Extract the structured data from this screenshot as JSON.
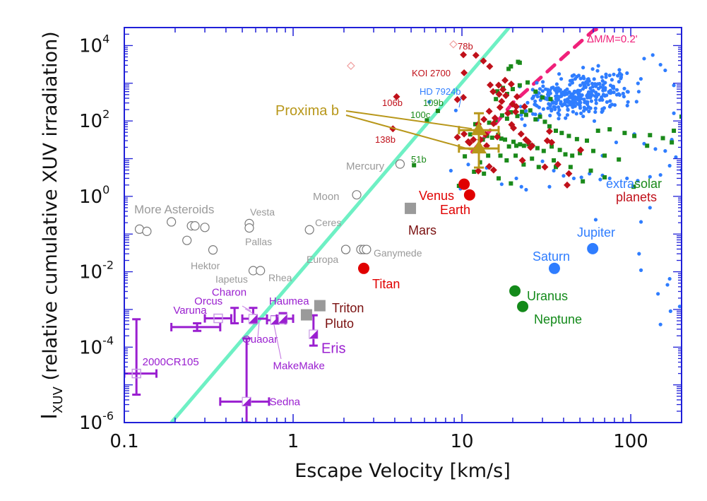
{
  "chart_data": {
    "type": "scatter",
    "title": "",
    "xlabel": "Escape Velocity [km/s]",
    "ylabel_main": "I",
    "ylabel_sub": "XUV",
    "ylabel_rest": " (relative cumulative XUV irradiation)",
    "xscale": "log",
    "yscale": "log",
    "xlim": [
      0.1,
      200
    ],
    "ylim": [
      1e-06,
      30000.0
    ],
    "grid": false,
    "x_ticks": [
      {
        "value": 0.1,
        "label": "0.1"
      },
      {
        "value": 1,
        "label": "1"
      },
      {
        "value": 10,
        "label": "10"
      },
      {
        "value": 100,
        "label": "100"
      }
    ],
    "y_ticks": [
      {
        "value": 1e-06,
        "base": "10",
        "exp": "-6"
      },
      {
        "value": 0.0001,
        "base": "10",
        "exp": "-4"
      },
      {
        "value": 0.01,
        "base": "10",
        "exp": "-2"
      },
      {
        "value": 1,
        "base": "10",
        "exp": "0"
      },
      {
        "value": 100,
        "base": "10",
        "exp": "2"
      },
      {
        "value": 10000,
        "base": "10",
        "exp": "4"
      }
    ],
    "colors": {
      "axis": "#2020d8",
      "cosmic_shoreline": "#6ef0c4",
      "mass_loss_line": "#f0207a",
      "solar_gray": "#9a9a9a",
      "rocky_red": "#e00000",
      "dark_red": "#7a1010",
      "giant_blue": "#2f7dff",
      "ice_green": "#138a1a",
      "dwarf_purple": "#9a1fd0",
      "proxima_gold": "#b8971a",
      "exo_red": "#c0101a",
      "exo_green": "#1a8a1a",
      "exo_blue": "#2f7dff",
      "exo_outline": "#f0a0a0"
    },
    "lines": [
      {
        "name": "cosmic-shoreline",
        "style": "solid",
        "points": [
          [
            0.19,
            1e-06
          ],
          [
            19,
            30000.0
          ]
        ]
      },
      {
        "name": "mass-loss-0.2",
        "style": "dashed",
        "label": "ΔM/M=0.2",
        "points": [
          [
            11.5,
            15
          ],
          [
            20,
            300
          ],
          [
            40,
            5000
          ],
          [
            60,
            25000
          ],
          [
            70,
            32000
          ]
        ]
      }
    ],
    "annotations": [
      {
        "text": "ΔM/M=0.2'",
        "x": 55,
        "y": 12000,
        "color": "#f0207a"
      },
      {
        "text": "More Asteroids",
        "x": 0.13,
        "y": 0.35,
        "color": "#9a9a9a"
      },
      {
        "text": "extra",
        "x": 88,
        "y": 1.2,
        "color": "#2f7dff",
        "part": 1
      },
      {
        "text": "solar",
        "x": 125,
        "y": 1.2,
        "color": "#1a8a1a",
        "part": 2
      },
      {
        "text": "planets",
        "x": 105,
        "y": 0.55,
        "color": "#c0101a"
      }
    ],
    "solar_system": [
      {
        "name": "Mercury",
        "x": 4.3,
        "y": 7.2,
        "marker": "circle-open",
        "color": "#9a9a9a",
        "label_side": "left"
      },
      {
        "name": "Moon",
        "x": 2.38,
        "y": 1.1,
        "marker": "circle-open",
        "color": "#9a9a9a",
        "label_side": "left"
      },
      {
        "name": "Vesta",
        "x": 0.55,
        "y": 0.19,
        "marker": "circle-open",
        "color": "#9a9a9a",
        "label_side": "top"
      },
      {
        "name": "Pallas",
        "x": 0.55,
        "y": 0.145,
        "marker": "circle-open",
        "color": "#9a9a9a",
        "label_side": "bottom"
      },
      {
        "name": "Ceres",
        "x": 1.25,
        "y": 0.13,
        "marker": "circle-open",
        "color": "#9a9a9a",
        "label_side": "right"
      },
      {
        "name": "Europa",
        "x": 2.05,
        "y": 0.039,
        "marker": "circle-open",
        "color": "#9a9a9a",
        "label_side": "left-below"
      },
      {
        "name": "Ganymede",
        "x": 2.72,
        "y": 0.039,
        "marker": "circle-open",
        "color": "#9a9a9a",
        "label_side": "right"
      },
      {
        "name": "Hektor",
        "x": 0.335,
        "y": 0.038,
        "marker": "circle-open",
        "color": "#9a9a9a",
        "label_side": "bottom"
      },
      {
        "name": "Iapetus",
        "x": 0.58,
        "y": 0.0107,
        "marker": "circle-open",
        "color": "#9a9a9a",
        "label_side": "left-below"
      },
      {
        "name": "Rhea",
        "x": 0.64,
        "y": 0.0107,
        "marker": "circle-open",
        "color": "#9a9a9a",
        "label_side": "right-below"
      },
      {
        "name": "Venus",
        "x": 10.3,
        "y": 2.1,
        "marker": "circle-filled",
        "color": "#e00000",
        "label_side": "left"
      },
      {
        "name": "Earth",
        "x": 11.1,
        "y": 1.09,
        "marker": "circle-filled",
        "color": "#e00000",
        "label_side": "bottom"
      },
      {
        "name": "Mars",
        "x": 4.95,
        "y": 0.48,
        "marker": "square-filled",
        "color": "#9a9a9a",
        "label_side": "bottom",
        "label_color": "#7a1010"
      },
      {
        "name": "Titan",
        "x": 2.62,
        "y": 0.0123,
        "marker": "circle-filled",
        "color": "#e00000",
        "label_side": "right-below"
      },
      {
        "name": "Jupiter",
        "x": 59.5,
        "y": 0.041,
        "marker": "circle-filled",
        "color": "#2f7dff",
        "label_side": "top"
      },
      {
        "name": "Saturn",
        "x": 35.3,
        "y": 0.0123,
        "marker": "circle-filled",
        "color": "#2f7dff",
        "label_side": "top"
      },
      {
        "name": "Uranus",
        "x": 20.6,
        "y": 0.0031,
        "marker": "circle-filled",
        "color": "#138a1a",
        "label_side": "right"
      },
      {
        "name": "Neptune",
        "x": 22.9,
        "y": 0.0012,
        "marker": "circle-filled",
        "color": "#138a1a",
        "label_side": "right-below"
      },
      {
        "name": "Triton",
        "x": 1.44,
        "y": 0.00126,
        "marker": "square-filled",
        "color": "#9a9a9a",
        "label_side": "right",
        "label_color": "#7a1010"
      },
      {
        "name": "Pluto",
        "x": 1.2,
        "y": 0.00072,
        "marker": "square-filled",
        "color": "#9a9a9a",
        "label_side": "right-far",
        "label_color": "#7a1010"
      }
    ],
    "asteroids": [
      {
        "x": 0.123,
        "y": 0.135
      },
      {
        "x": 0.136,
        "y": 0.118
      },
      {
        "x": 0.19,
        "y": 0.21
      },
      {
        "x": 0.25,
        "y": 0.165
      },
      {
        "x": 0.262,
        "y": 0.165
      },
      {
        "x": 0.3,
        "y": 0.15
      },
      {
        "x": 0.235,
        "y": 0.068
      },
      {
        "x": 2.05,
        "y": 0.039
      },
      {
        "x": 2.52,
        "y": 0.039
      },
      {
        "x": 2.62,
        "y": 0.039
      }
    ],
    "dwarf_planets": [
      {
        "name": "2000CR105",
        "x": 0.118,
        "y": 2e-05,
        "xerr": [
          0.1,
          0.155
        ],
        "yerr": [
          5.5e-06,
          0.00055
        ],
        "marker": "square-open"
      },
      {
        "name": "Sedna",
        "x": 0.53,
        "y": 3.6e-06,
        "xerr": [
          0.37,
          0.72
        ],
        "yerr": [
          1e-06,
          0.00017
        ],
        "marker": "square-half"
      },
      {
        "name": "Varuna",
        "x": 0.27,
        "y": 0.00034,
        "xerr": [
          0.19,
          0.37
        ],
        "yerr": [
          0.00027,
          0.00043
        ],
        "marker": "none"
      },
      {
        "name": "Orcus",
        "x": 0.36,
        "y": 0.00058,
        "xerr": [
          0.3,
          0.43
        ],
        "yerr": [
          0.00058,
          0.00058
        ],
        "marker": "square-open"
      },
      {
        "name": "Charon",
        "x": 0.45,
        "y": 0.00062,
        "xerr": [
          0.45,
          0.45
        ],
        "yerr": [
          0.00043,
          0.0011
        ],
        "marker": "bar"
      },
      {
        "name": "Quaoar",
        "x": 0.58,
        "y": 0.00057,
        "xerr": [
          0.5,
          0.7
        ],
        "yerr": [
          0.00044,
          0.0011
        ],
        "marker": "square-half"
      },
      {
        "name": "MakeMake",
        "x": 0.78,
        "y": 0.00052,
        "xerr": [
          0.7,
          0.9
        ],
        "yerr": [
          0.00044,
          0.00066
        ],
        "marker": "square-half"
      },
      {
        "name": "Haumea",
        "x": 0.87,
        "y": 0.00057,
        "xerr": [
          0.8,
          1.0
        ],
        "yerr": [
          0.00044,
          0.0008
        ],
        "marker": "square-half"
      },
      {
        "name": "Eris",
        "x": 1.32,
        "y": 0.00022,
        "xerr": [
          1.32,
          1.32
        ],
        "yerr": [
          0.00011,
          0.0007
        ],
        "marker": "square-half"
      }
    ],
    "exoplanet_labels": [
      {
        "text": "78b",
        "x": 9.2,
        "y": 10500,
        "color": "#c0101a"
      },
      {
        "text": "KOI 2700",
        "x": 6.6,
        "y": 1850,
        "color": "#c0101a"
      },
      {
        "text": "HD 7924b",
        "x": 8.8,
        "y": 520,
        "color": "#2f7dff"
      },
      {
        "text": "106b",
        "x": 3.4,
        "y": 300,
        "color": "#c0101a"
      },
      {
        "text": "109b",
        "x": 6.8,
        "y": 180,
        "color": "#1a8a1a"
      },
      {
        "text": "100c",
        "x": 6.0,
        "y": 103,
        "color": "#1a8a1a"
      },
      {
        "text": "138b",
        "x": 3.6,
        "y": 25,
        "color": "#c0101a"
      },
      {
        "text": "51b",
        "x": 5.4,
        "y": 5.5,
        "color": "#1a8a1a"
      }
    ],
    "proxima_b": {
      "label": "Proxima b",
      "color": "#b8971a",
      "points": [
        {
          "x": 12.6,
          "y": 57,
          "xerr": [
            9.6,
            16.5
          ],
          "yerr": [
            19,
            160
          ]
        },
        {
          "x": 12.6,
          "y": 18.6,
          "xerr": [
            9.6,
            16.5
          ],
          "yerr": [
            5.8,
            57
          ]
        }
      ]
    },
    "exoplanets_red": [
      [
        8.9,
        10800,
        "open"
      ],
      [
        2.2,
        2900,
        "open"
      ],
      [
        10.3,
        1900
      ],
      [
        10.2,
        5700
      ],
      [
        13.4,
        3900
      ],
      [
        14.6,
        2800
      ],
      [
        12.1,
        5500
      ],
      [
        13.5,
        110
      ],
      [
        3.9,
        62
      ],
      [
        4.1,
        440
      ],
      [
        9.4,
        370
      ],
      [
        10.2,
        420
      ],
      [
        15.3,
        600
      ],
      [
        14.7,
        900
      ],
      [
        16.5,
        890
      ],
      [
        18,
        1200
      ],
      [
        19.6,
        950
      ],
      [
        17.2,
        330
      ],
      [
        16.6,
        510
      ],
      [
        17.5,
        680
      ],
      [
        18.2,
        470
      ],
      [
        19.9,
        280
      ],
      [
        21,
        240
      ],
      [
        21.2,
        440
      ],
      [
        14.5,
        180
      ],
      [
        15.7,
        120
      ],
      [
        16.8,
        230
      ],
      [
        18.7,
        160
      ],
      [
        20.8,
        175
      ],
      [
        23.5,
        240
      ],
      [
        15.4,
        85
      ],
      [
        13.8,
        44
      ],
      [
        12.5,
        82
      ],
      [
        19.7,
        80
      ],
      [
        20.2,
        65
      ],
      [
        22.4,
        45
      ],
      [
        23.9,
        32
      ],
      [
        9.4,
        37
      ],
      [
        10.3,
        45
      ],
      [
        10.9,
        28
      ],
      [
        11.7,
        32
      ],
      [
        12.9,
        32
      ],
      [
        14,
        22
      ],
      [
        16.2,
        38
      ],
      [
        11.1,
        26
      ],
      [
        24.7,
        28
      ],
      [
        25.5,
        20
      ],
      [
        33,
        53
      ],
      [
        32,
        30
      ],
      [
        34,
        27
      ],
      [
        22.8,
        9
      ],
      [
        37,
        7
      ],
      [
        50.5,
        17
      ],
      [
        43,
        4
      ],
      [
        31,
        6
      ],
      [
        26,
        22
      ],
      [
        12.5,
        4.7
      ],
      [
        14.5,
        6.2
      ],
      [
        15.4,
        5
      ],
      [
        42,
        2
      ]
    ],
    "exoplanets_green": [
      [
        7.2,
        185
      ],
      [
        6.2,
        104
      ],
      [
        5.2,
        6.7
      ],
      [
        11.2,
        44
      ],
      [
        12,
        82
      ],
      [
        13.3,
        32
      ],
      [
        14.1,
        40
      ],
      [
        15.1,
        36
      ],
      [
        16.4,
        43
      ],
      [
        17.1,
        34
      ],
      [
        18,
        32
      ],
      [
        19,
        21
      ],
      [
        20.2,
        28
      ],
      [
        21,
        22
      ],
      [
        22.1,
        24
      ],
      [
        23.3,
        22
      ],
      [
        24.8,
        24
      ],
      [
        26.1,
        22
      ],
      [
        28,
        19
      ],
      [
        30.5,
        16
      ],
      [
        34,
        21
      ],
      [
        38,
        17
      ],
      [
        41,
        13
      ],
      [
        45,
        12
      ],
      [
        50,
        14
      ],
      [
        60,
        16
      ],
      [
        70,
        12
      ],
      [
        85,
        9.5
      ],
      [
        14.5,
        90
      ],
      [
        15.8,
        105
      ],
      [
        17.3,
        140
      ],
      [
        18.5,
        115
      ],
      [
        19.5,
        170
      ],
      [
        21.3,
        135
      ],
      [
        22.7,
        175
      ],
      [
        24,
        145
      ],
      [
        25.4,
        190
      ],
      [
        27.3,
        110
      ],
      [
        29,
        130
      ],
      [
        31,
        95
      ],
      [
        33,
        72
      ],
      [
        36,
        55
      ],
      [
        39,
        48
      ],
      [
        43,
        40
      ],
      [
        48,
        33
      ],
      [
        55,
        30
      ],
      [
        64,
        55
      ],
      [
        75,
        60
      ],
      [
        92,
        48
      ],
      [
        105,
        40
      ],
      [
        130,
        42
      ],
      [
        175,
        27
      ],
      [
        200,
        130
      ],
      [
        180,
        55
      ],
      [
        155,
        35
      ],
      [
        125,
        22
      ],
      [
        15.9,
        380
      ],
      [
        16.2,
        610
      ],
      [
        17.5,
        750
      ],
      [
        18.5,
        520
      ],
      [
        20,
        700
      ],
      [
        22,
        880
      ],
      [
        24.5,
        1050
      ],
      [
        27.3,
        600
      ],
      [
        30,
        420
      ],
      [
        33.5,
        380
      ],
      [
        21.5,
        3700
      ],
      [
        22,
        3500
      ],
      [
        18.9,
        2400
      ],
      [
        19.5,
        2800
      ],
      [
        12.8,
        8
      ],
      [
        14.3,
        12
      ],
      [
        16.9,
        12
      ],
      [
        18.4,
        9
      ],
      [
        20.8,
        12
      ],
      [
        23.2,
        7
      ],
      [
        26,
        10
      ],
      [
        28.5,
        6
      ],
      [
        10.4,
        11.5
      ],
      [
        11.8,
        4.5
      ],
      [
        9.6,
        1.9
      ],
      [
        35,
        9
      ],
      [
        44,
        6
      ],
      [
        36,
        6
      ],
      [
        58,
        4.8
      ],
      [
        52,
        2.5
      ],
      [
        70,
        3.2
      ],
      [
        104,
        1.8
      ],
      [
        13.5,
        4
      ],
      [
        16.5,
        3
      ],
      [
        19.5,
        2.2
      ]
    ],
    "exoplanets_blue_cluster": {
      "x_range": [
        22,
        100
      ],
      "y_range": [
        150,
        1500
      ],
      "count": 320
    },
    "exoplanets_blue": [
      [
        9.2,
        190
      ],
      [
        6.4,
        320
      ],
      [
        10.9,
        7
      ],
      [
        8.6,
        4.8
      ],
      [
        14,
        5.7
      ],
      [
        9.8,
        1.6
      ],
      [
        17.2,
        2.1
      ],
      [
        21,
        3
      ],
      [
        22.5,
        1.8
      ],
      [
        30,
        8.5
      ],
      [
        35,
        4.8
      ],
      [
        33,
        1.8
      ],
      [
        24,
        1.5
      ],
      [
        40,
        3.5
      ],
      [
        46,
        3
      ],
      [
        51,
        3.2
      ],
      [
        57,
        4
      ],
      [
        66,
        2.8
      ],
      [
        68,
        3.6
      ],
      [
        75,
        3
      ],
      [
        95,
        3
      ],
      [
        110,
        2.6
      ],
      [
        130,
        3.3
      ],
      [
        150,
        3.7
      ],
      [
        170,
        6.5
      ],
      [
        185,
        11
      ],
      [
        160,
        16
      ],
      [
        140,
        18
      ],
      [
        120,
        25
      ],
      [
        200,
        5
      ],
      [
        175,
        32
      ],
      [
        62,
        0.24
      ],
      [
        115,
        0.21
      ],
      [
        112,
        0.03
      ],
      [
        170,
        0.0065
      ],
      [
        165,
        0.0045
      ],
      [
        145,
        0.0026
      ],
      [
        195,
        0.0012
      ],
      [
        172,
        0.0009
      ],
      [
        150,
        0.0004
      ],
      [
        115,
        0.011
      ],
      [
        130,
        0.5
      ],
      [
        68,
        12
      ],
      [
        82,
        27
      ],
      [
        105,
        45
      ],
      [
        120,
        4500
      ],
      [
        150,
        3100
      ],
      [
        180,
        880
      ],
      [
        160,
        2200
      ],
      [
        135,
        5600
      ],
      [
        180,
        160
      ]
    ]
  }
}
